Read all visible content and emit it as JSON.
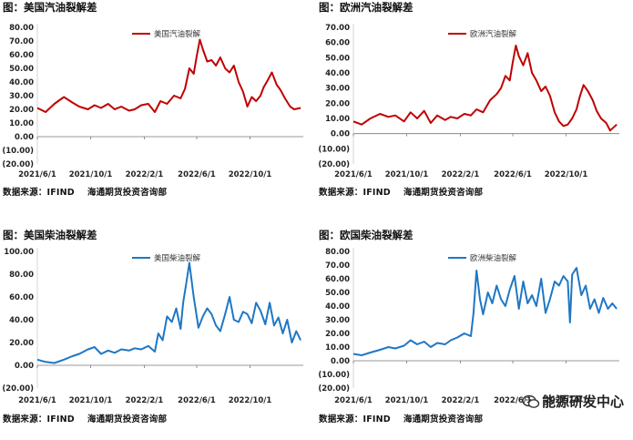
{
  "chart_data": [
    {
      "type": "line",
      "title": "图：美国汽油裂解差",
      "source": [
        "数据来源：IFIND",
        "海通期货投资咨询部"
      ],
      "legend": "top-center",
      "color": "#c00000",
      "ylim": [
        -20,
        80
      ],
      "yticks": [
        "80.00",
        "70.00",
        "60.00",
        "50.00",
        "40.00",
        "30.00",
        "20.00",
        "10.00",
        "0.00",
        "(10.00)",
        "(20.00)"
      ],
      "xlim": [
        "2021-06-01",
        "2023-01-31"
      ],
      "xticks": [
        "2021/6/1",
        "2021/10/1",
        "2022/2/1",
        "2022/6/1",
        "2022/10/1"
      ],
      "series": [
        {
          "name": "美国汽油裂解",
          "x": [
            "2021-06-01",
            "2021-06-20",
            "2021-07-10",
            "2021-08-01",
            "2021-08-20",
            "2021-09-05",
            "2021-09-25",
            "2021-10-10",
            "2021-10-25",
            "2021-11-10",
            "2021-11-25",
            "2021-12-10",
            "2021-12-28",
            "2022-01-10",
            "2022-01-25",
            "2022-02-10",
            "2022-02-25",
            "2022-03-10",
            "2022-03-25",
            "2022-04-10",
            "2022-04-25",
            "2022-05-05",
            "2022-05-15",
            "2022-05-25",
            "2022-06-01",
            "2022-06-08",
            "2022-06-15",
            "2022-06-25",
            "2022-07-05",
            "2022-07-15",
            "2022-07-25",
            "2022-08-05",
            "2022-08-15",
            "2022-08-25",
            "2022-09-05",
            "2022-09-15",
            "2022-09-25",
            "2022-10-05",
            "2022-10-15",
            "2022-10-25",
            "2022-11-01",
            "2022-11-10",
            "2022-11-20",
            "2022-12-01",
            "2022-12-10",
            "2022-12-20",
            "2023-01-01",
            "2023-01-10",
            "2023-01-25"
          ],
          "values": [
            21,
            18,
            24,
            29,
            25,
            22,
            20,
            23,
            21,
            24,
            20,
            22,
            19,
            20,
            23,
            24,
            18,
            26,
            24,
            30,
            28,
            35,
            50,
            46,
            59,
            71,
            64,
            55,
            56,
            52,
            58,
            50,
            47,
            52,
            40,
            33,
            22,
            29,
            26,
            30,
            36,
            41,
            47,
            38,
            34,
            28,
            22,
            20,
            21
          ]
        }
      ]
    },
    {
      "type": "line",
      "title": "图：欧洲汽油裂解差",
      "source": [
        "数据来源：IFIND",
        "海通期货投资咨询部"
      ],
      "legend": "top-center",
      "color": "#c00000",
      "ylim": [
        -20,
        70
      ],
      "yticks": [
        "70.00",
        "60.00",
        "50.00",
        "40.00",
        "30.00",
        "20.00",
        "10.00",
        "0.00",
        "(10.00)",
        "(20.00)"
      ],
      "xlim": [
        "2021-06-01",
        "2023-01-31"
      ],
      "xticks": [
        "2021/6/1",
        "2021/10/1",
        "2022/2/1",
        "2022/6/1",
        "2022/10/1"
      ],
      "series": [
        {
          "name": "欧洲汽油裂解",
          "x": [
            "2021-06-01",
            "2021-06-20",
            "2021-07-10",
            "2021-08-01",
            "2021-08-20",
            "2021-09-05",
            "2021-09-25",
            "2021-10-10",
            "2021-10-25",
            "2021-11-10",
            "2021-11-25",
            "2021-12-10",
            "2021-12-28",
            "2022-01-10",
            "2022-01-25",
            "2022-02-10",
            "2022-02-25",
            "2022-03-10",
            "2022-03-25",
            "2022-04-10",
            "2022-04-25",
            "2022-05-05",
            "2022-05-15",
            "2022-05-25",
            "2022-06-01",
            "2022-06-08",
            "2022-06-15",
            "2022-06-25",
            "2022-07-05",
            "2022-07-15",
            "2022-07-25",
            "2022-08-05",
            "2022-08-15",
            "2022-08-25",
            "2022-09-05",
            "2022-09-15",
            "2022-09-25",
            "2022-10-05",
            "2022-10-15",
            "2022-10-25",
            "2022-11-01",
            "2022-11-10",
            "2022-11-20",
            "2022-12-01",
            "2022-12-10",
            "2022-12-20",
            "2023-01-01",
            "2023-01-10",
            "2023-01-25"
          ],
          "values": [
            8,
            6,
            10,
            13,
            11,
            12,
            8,
            14,
            10,
            15,
            7,
            12,
            9,
            11,
            10,
            13,
            12,
            16,
            14,
            22,
            26,
            30,
            38,
            35,
            47,
            58,
            51,
            45,
            53,
            40,
            35,
            28,
            31,
            25,
            14,
            8,
            5,
            6,
            10,
            16,
            24,
            32,
            28,
            22,
            15,
            10,
            7,
            2,
            6
          ]
        }
      ]
    },
    {
      "type": "line",
      "title": "图：美国柴油裂解差",
      "source": [
        "数据来源：IFIND",
        "海通期货投资咨询部"
      ],
      "legend": "top-center",
      "color": "#1f77c4",
      "ylim": [
        -20,
        100
      ],
      "yticks": [
        "100.00",
        "80.00",
        "60.00",
        "40.00",
        "20.00",
        "0.00",
        "(20.00)"
      ],
      "xlim": [
        "2021-06-01",
        "2023-01-31"
      ],
      "xticks": [
        "2021/6/1",
        "2021/10/1",
        "2022/2/1",
        "2022/6/1",
        "2022/10/1"
      ],
      "series": [
        {
          "name": "美国柴油裂解",
          "x": [
            "2021-06-01",
            "2021-06-20",
            "2021-07-10",
            "2021-08-01",
            "2021-08-20",
            "2021-09-05",
            "2021-09-25",
            "2021-10-10",
            "2021-10-25",
            "2021-11-10",
            "2021-11-25",
            "2021-12-10",
            "2021-12-28",
            "2022-01-10",
            "2022-01-25",
            "2022-02-10",
            "2022-02-25",
            "2022-03-05",
            "2022-03-15",
            "2022-03-25",
            "2022-04-05",
            "2022-04-15",
            "2022-04-25",
            "2022-05-01",
            "2022-05-08",
            "2022-05-15",
            "2022-05-25",
            "2022-06-05",
            "2022-06-15",
            "2022-06-25",
            "2022-07-05",
            "2022-07-15",
            "2022-07-25",
            "2022-08-05",
            "2022-08-15",
            "2022-08-25",
            "2022-09-05",
            "2022-09-15",
            "2022-09-25",
            "2022-10-05",
            "2022-10-15",
            "2022-10-25",
            "2022-11-05",
            "2022-11-15",
            "2022-11-25",
            "2022-12-05",
            "2022-12-15",
            "2022-12-25",
            "2023-01-05",
            "2023-01-15",
            "2023-01-25"
          ],
          "values": [
            5,
            3,
            2,
            5,
            8,
            10,
            14,
            16,
            10,
            13,
            11,
            14,
            13,
            15,
            14,
            17,
            12,
            28,
            22,
            43,
            38,
            50,
            32,
            55,
            72,
            90,
            60,
            33,
            43,
            50,
            45,
            35,
            30,
            45,
            60,
            40,
            38,
            47,
            45,
            37,
            55,
            48,
            36,
            55,
            35,
            42,
            28,
            40,
            20,
            30,
            22
          ]
        }
      ]
    },
    {
      "type": "line",
      "title": "图：欧国柴油裂解差",
      "source": [
        "数据来源：IFIND",
        "海通期货投资咨询部"
      ],
      "legend": "top-center",
      "color": "#1f77c4",
      "ylim": [
        -20,
        80
      ],
      "yticks": [
        "80.00",
        "70.00",
        "60.00",
        "50.00",
        "40.00",
        "30.00",
        "20.00",
        "10.00",
        "0.00",
        "(10.00)",
        "(20.00)"
      ],
      "xlim": [
        "2021-06-01",
        "2023-01-31"
      ],
      "xticks": [
        "2021/6/1",
        "2021/10/1",
        "2022/2/1",
        "2022/6/1",
        "2022/10/1"
      ],
      "series": [
        {
          "name": "欧洲柴油裂解",
          "x": [
            "2021-06-01",
            "2021-06-20",
            "2021-07-10",
            "2021-08-01",
            "2021-08-20",
            "2021-09-05",
            "2021-09-25",
            "2021-10-10",
            "2021-10-25",
            "2021-11-10",
            "2021-11-25",
            "2021-12-10",
            "2021-12-28",
            "2022-01-10",
            "2022-01-25",
            "2022-02-10",
            "2022-02-25",
            "2022-03-03",
            "2022-03-10",
            "2022-03-18",
            "2022-03-25",
            "2022-04-05",
            "2022-04-15",
            "2022-04-25",
            "2022-05-05",
            "2022-05-15",
            "2022-05-25",
            "2022-06-05",
            "2022-06-15",
            "2022-06-25",
            "2022-07-05",
            "2022-07-15",
            "2022-07-25",
            "2022-08-05",
            "2022-08-15",
            "2022-08-25",
            "2022-09-05",
            "2022-09-15",
            "2022-09-25",
            "2022-10-05",
            "2022-10-10",
            "2022-10-15",
            "2022-10-25",
            "2022-11-05",
            "2022-11-15",
            "2022-11-25",
            "2022-12-05",
            "2022-12-15",
            "2022-12-25",
            "2023-01-05",
            "2023-01-15",
            "2023-01-25"
          ],
          "values": [
            5,
            4,
            6,
            8,
            10,
            9,
            11,
            15,
            12,
            14,
            10,
            13,
            12,
            15,
            17,
            20,
            18,
            35,
            66,
            45,
            34,
            50,
            42,
            55,
            45,
            40,
            52,
            62,
            38,
            58,
            42,
            48,
            40,
            60,
            35,
            45,
            58,
            55,
            62,
            58,
            28,
            63,
            68,
            48,
            55,
            38,
            45,
            35,
            46,
            38,
            42,
            38
          ]
        }
      ]
    }
  ],
  "watermark": "能源研发中心"
}
